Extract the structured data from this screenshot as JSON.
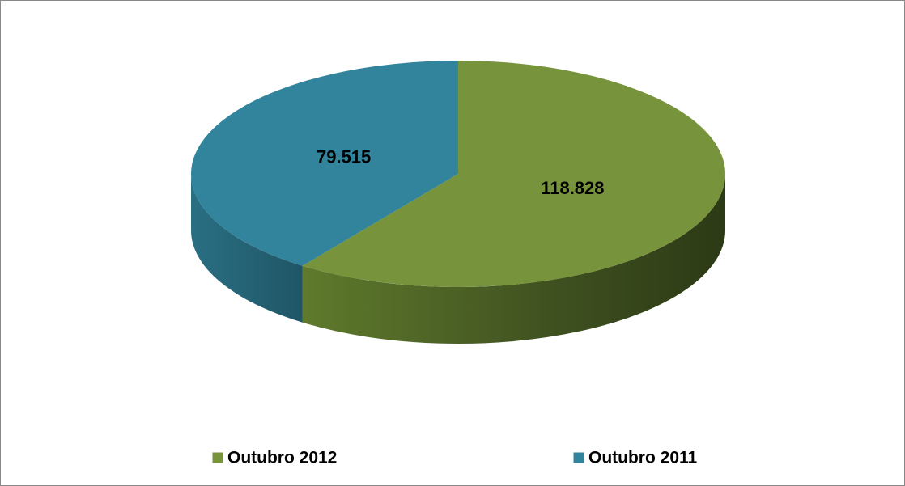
{
  "chart_data": {
    "type": "pie",
    "categories": [
      "Outubro 2012",
      "Outubro 2011"
    ],
    "values": [
      118828,
      79515
    ],
    "value_labels": [
      "118.828",
      "79.515"
    ],
    "colors": [
      "#77933c",
      "#31849b"
    ],
    "legend": "bottom"
  }
}
